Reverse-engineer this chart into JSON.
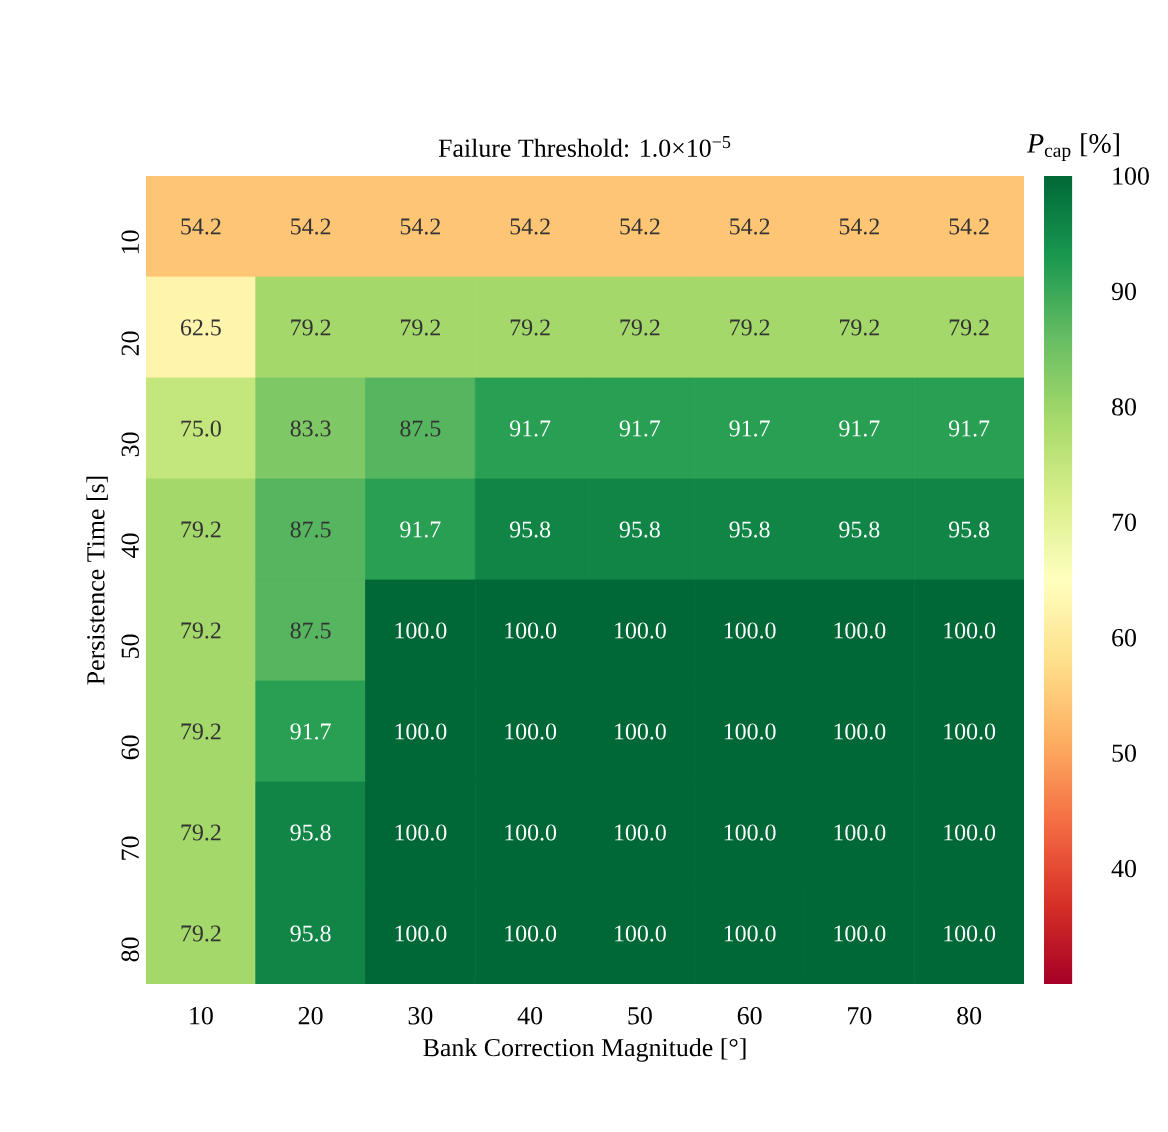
{
  "chart_data": {
    "type": "heatmap",
    "title": "Failure Threshold: 1.0×10$^{−5}$",
    "xlabel": "Bank Correction Magnitude [°]",
    "ylabel": "Persistence Time [s]",
    "clabel": "*P*$_{cap}$ [%]",
    "categories": [
      "10",
      "20",
      "30",
      "40",
      "50",
      "60",
      "70",
      "80"
    ],
    "y_categories": [
      "10",
      "20",
      "30",
      "40",
      "50",
      "60",
      "70",
      "80"
    ],
    "cells": [
      [
        54.2,
        54.2,
        54.2,
        54.2,
        54.2,
        54.2,
        54.2,
        54.2
      ],
      [
        62.5,
        79.2,
        79.2,
        79.2,
        79.2,
        79.2,
        79.2,
        79.2
      ],
      [
        75.0,
        83.3,
        87.5,
        91.7,
        91.7,
        91.7,
        91.7,
        91.7
      ],
      [
        79.2,
        87.5,
        91.7,
        95.8,
        95.8,
        95.8,
        95.8,
        95.8
      ],
      [
        79.2,
        87.5,
        100.0,
        100.0,
        100.0,
        100.0,
        100.0,
        100.0
      ],
      [
        79.2,
        91.7,
        100.0,
        100.0,
        100.0,
        100.0,
        100.0,
        100.0
      ],
      [
        79.2,
        95.8,
        100.0,
        100.0,
        100.0,
        100.0,
        100.0,
        100.0
      ],
      [
        79.2,
        95.8,
        100.0,
        100.0,
        100.0,
        100.0,
        100.0,
        100.0
      ]
    ],
    "cell_labels": [
      [
        "54.2",
        "54.2",
        "54.2",
        "54.2",
        "54.2",
        "54.2",
        "54.2",
        "54.2"
      ],
      [
        "62.5",
        "79.2",
        "79.2",
        "79.2",
        "79.2",
        "79.2",
        "79.2",
        "79.2"
      ],
      [
        "75.0",
        "83.3",
        "87.5",
        "91.7",
        "91.7",
        "91.7",
        "91.7",
        "91.7"
      ],
      [
        "79.2",
        "87.5",
        "91.7",
        "95.8",
        "95.8",
        "95.8",
        "95.8",
        "95.8"
      ],
      [
        "79.2",
        "87.5",
        "100.0",
        "100.0",
        "100.0",
        "100.0",
        "100.0",
        "100.0"
      ],
      [
        "79.2",
        "91.7",
        "100.0",
        "100.0",
        "100.0",
        "100.0",
        "100.0",
        "100.0"
      ],
      [
        "79.2",
        "95.8",
        "100.0",
        "100.0",
        "100.0",
        "100.0",
        "100.0",
        "100.0"
      ],
      [
        "79.2",
        "95.8",
        "100.0",
        "100.0",
        "100.0",
        "100.0",
        "100.0",
        "100.0"
      ]
    ],
    "clim": [
      30,
      100
    ],
    "cticks": [
      40,
      50,
      60,
      70,
      80,
      90,
      100
    ]
  }
}
